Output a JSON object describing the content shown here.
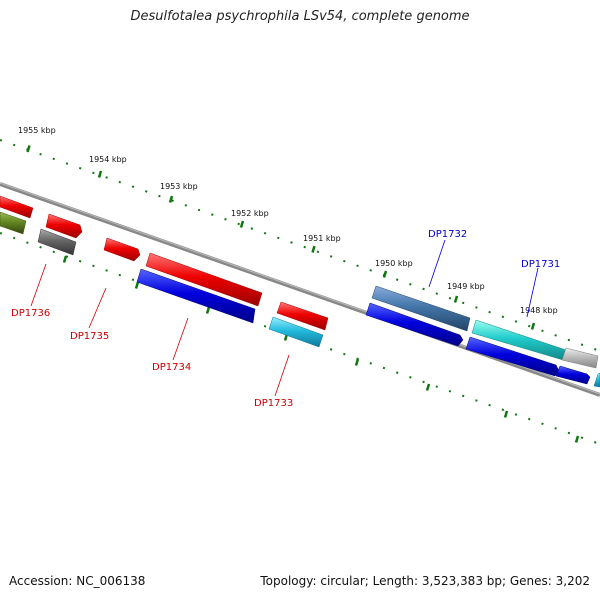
{
  "title": "Desulfotalea psychrophila LSv54, complete genome",
  "footer": {
    "accession": "Accession: NC_006138",
    "stats": "Topology: circular; Length: 3,523,383 bp; Genes: 3,202"
  },
  "kbp_labels": [
    "1955 kbp",
    "1954 kbp",
    "1953 kbp",
    "1952 kbp",
    "1951 kbp",
    "1950 kbp",
    "1949 kbp",
    "1948 kbp"
  ],
  "gene_labels": {
    "dp1736": "DP1736",
    "dp1735": "DP1735",
    "dp1734": "DP1734",
    "dp1733": "DP1733",
    "dp1732": "DP1732",
    "dp1731": "DP1731"
  },
  "colors": {
    "forward_red": "#ee0000",
    "reverse_blue": "#0000dd",
    "cyan": "#22bbdd",
    "teal": "#22cccc",
    "steel": "#4477aa",
    "olive": "#668822",
    "gray": "#666666",
    "tick_green": "#117711",
    "label_red": "#cc0000",
    "label_blue": "#0000cc"
  }
}
